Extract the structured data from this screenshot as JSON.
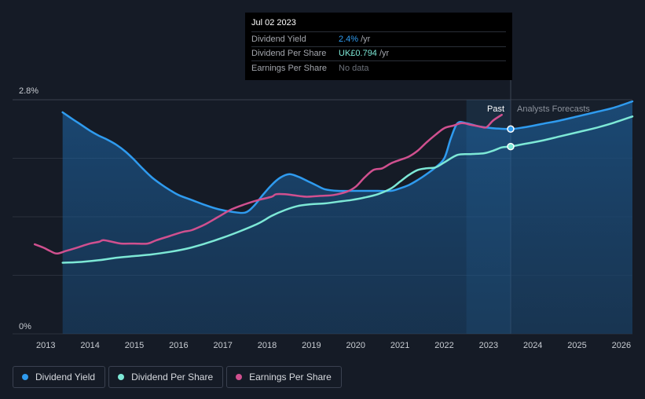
{
  "tooltip": {
    "date": "Jul 02 2023",
    "rows": [
      {
        "label": "Dividend Yield",
        "value": "2.4%",
        "unit": "/yr"
      },
      {
        "label": "Dividend Per Share",
        "value": "UK£0.794",
        "unit": "/yr"
      },
      {
        "label": "Earnings Per Share",
        "value": "No data",
        "unit": ""
      }
    ]
  },
  "chart_data": {
    "type": "line",
    "title": "",
    "y_axis": {
      "min_label": "0%",
      "max_label": "2.8%",
      "ylim": [
        0,
        2.8
      ]
    },
    "x_axis": {
      "ticks": [
        "2013",
        "2014",
        "2015",
        "2016",
        "2017",
        "2018",
        "2019",
        "2020",
        "2021",
        "2022",
        "2023",
        "2024",
        "2025",
        "2026"
      ],
      "xlim": [
        2012.25,
        2026.25
      ]
    },
    "regions": {
      "past_label": "Past",
      "forecast_label": "Analysts Forecasts",
      "divider_x": 2023.5,
      "shade_start_x": 2022.5
    },
    "colors": {
      "yield": "#2f9bef",
      "dps": "#7de8d6",
      "eps": "#d0508f",
      "grid": "#2a303c",
      "axis_text": "#c8ccd2"
    },
    "series": [
      {
        "name": "Dividend Yield",
        "key": "yield",
        "filled": true,
        "x": [
          2013.38,
          2013.6,
          2013.8,
          2014.0,
          2014.2,
          2014.4,
          2014.6,
          2014.8,
          2015.0,
          2015.2,
          2015.4,
          2015.6,
          2015.8,
          2016.0,
          2016.3,
          2016.6,
          2016.9,
          2017.2,
          2017.5,
          2017.7,
          2017.9,
          2018.1,
          2018.3,
          2018.5,
          2018.7,
          2018.9,
          2019.1,
          2019.3,
          2019.6,
          2019.9,
          2020.2,
          2020.5,
          2020.8,
          2021.0,
          2021.2,
          2021.4,
          2021.6,
          2021.8,
          2022.0,
          2022.15,
          2022.3,
          2022.5,
          2022.8,
          2023.1,
          2023.5,
          2023.8,
          2024.2,
          2024.6,
          2025.0,
          2025.4,
          2025.8,
          2026.25
        ],
        "y": [
          2.65,
          2.57,
          2.5,
          2.43,
          2.37,
          2.32,
          2.26,
          2.18,
          2.08,
          1.97,
          1.87,
          1.79,
          1.72,
          1.66,
          1.6,
          1.54,
          1.49,
          1.46,
          1.45,
          1.53,
          1.66,
          1.78,
          1.87,
          1.91,
          1.88,
          1.83,
          1.78,
          1.73,
          1.71,
          1.71,
          1.71,
          1.71,
          1.71,
          1.74,
          1.78,
          1.84,
          1.91,
          1.99,
          2.1,
          2.34,
          2.52,
          2.52,
          2.48,
          2.46,
          2.45,
          2.47,
          2.51,
          2.55,
          2.6,
          2.65,
          2.7,
          2.78
        ]
      },
      {
        "name": "Dividend Per Share",
        "key": "dps",
        "filled": false,
        "x": [
          2013.38,
          2013.8,
          2014.2,
          2014.6,
          2015.0,
          2015.4,
          2015.8,
          2016.2,
          2016.6,
          2017.0,
          2017.4,
          2017.8,
          2018.1,
          2018.4,
          2018.7,
          2019.0,
          2019.3,
          2019.6,
          2019.9,
          2020.2,
          2020.5,
          2020.8,
          2021.0,
          2021.2,
          2021.4,
          2021.6,
          2021.8,
          2022.0,
          2022.3,
          2022.6,
          2022.9,
          2023.1,
          2023.3,
          2023.5,
          2023.8,
          2024.2,
          2024.6,
          2025.0,
          2025.4,
          2025.8,
          2026.25
        ],
        "y": [
          0.85,
          0.86,
          0.88,
          0.91,
          0.93,
          0.95,
          0.98,
          1.02,
          1.08,
          1.15,
          1.23,
          1.32,
          1.41,
          1.48,
          1.53,
          1.55,
          1.56,
          1.58,
          1.6,
          1.63,
          1.67,
          1.74,
          1.82,
          1.9,
          1.96,
          1.98,
          1.99,
          2.05,
          2.14,
          2.15,
          2.16,
          2.19,
          2.23,
          2.24,
          2.27,
          2.31,
          2.36,
          2.41,
          2.46,
          2.52,
          2.6
        ]
      },
      {
        "name": "Earnings Per Share",
        "key": "eps",
        "filled": false,
        "x": [
          2012.75,
          2012.95,
          2013.1,
          2013.25,
          2013.45,
          2013.7,
          2014.0,
          2014.2,
          2014.3,
          2014.5,
          2014.7,
          2015.0,
          2015.3,
          2015.5,
          2015.8,
          2016.1,
          2016.3,
          2016.6,
          2016.9,
          2017.2,
          2017.5,
          2017.8,
          2018.1,
          2018.2,
          2018.4,
          2018.7,
          2018.9,
          2019.2,
          2019.5,
          2019.8,
          2020.0,
          2020.2,
          2020.4,
          2020.6,
          2020.8,
          2021.0,
          2021.2,
          2021.4,
          2021.6,
          2021.8,
          2022.0,
          2022.2,
          2022.4,
          2022.6,
          2022.8,
          2022.95,
          2023.1,
          2023.3
        ],
        "y": [
          1.07,
          1.03,
          0.99,
          0.96,
          0.99,
          1.03,
          1.08,
          1.1,
          1.12,
          1.1,
          1.08,
          1.08,
          1.08,
          1.12,
          1.17,
          1.22,
          1.24,
          1.31,
          1.4,
          1.49,
          1.55,
          1.6,
          1.64,
          1.67,
          1.67,
          1.65,
          1.64,
          1.65,
          1.66,
          1.7,
          1.76,
          1.87,
          1.96,
          1.98,
          2.04,
          2.08,
          2.12,
          2.19,
          2.29,
          2.38,
          2.46,
          2.49,
          2.52,
          2.5,
          2.48,
          2.47,
          2.55,
          2.62
        ]
      }
    ],
    "markers": [
      {
        "key": "yield",
        "x": 2023.5,
        "y": 2.45
      },
      {
        "key": "dps",
        "x": 2023.5,
        "y": 2.24
      }
    ]
  },
  "legend": [
    {
      "label": "Dividend Yield",
      "key": "yield"
    },
    {
      "label": "Dividend Per Share",
      "key": "dps"
    },
    {
      "label": "Earnings Per Share",
      "key": "eps"
    }
  ]
}
